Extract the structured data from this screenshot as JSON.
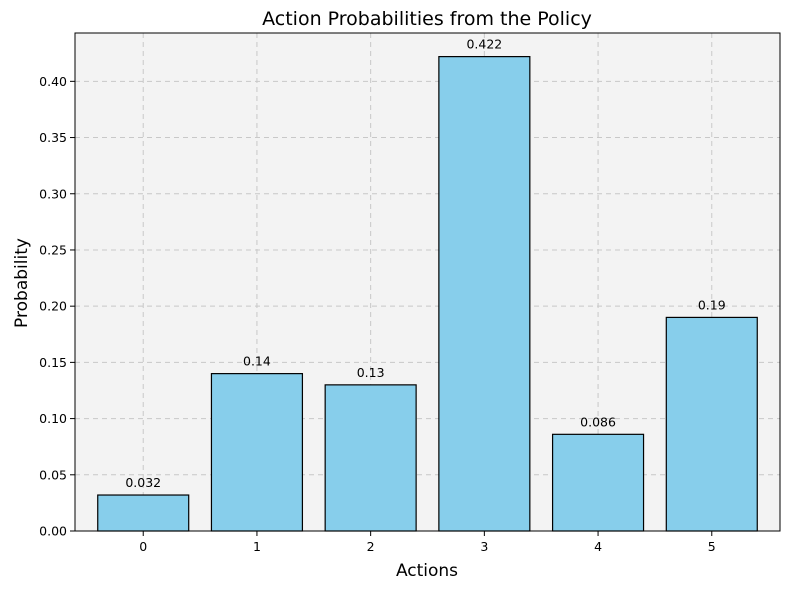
{
  "chart_data": {
    "type": "bar",
    "title": "Action Probabilities from the Policy",
    "xlabel": "Actions",
    "ylabel": "Probability",
    "categories": [
      "0",
      "1",
      "2",
      "3",
      "4",
      "5"
    ],
    "values": [
      0.032,
      0.14,
      0.13,
      0.422,
      0.086,
      0.19
    ],
    "data_labels": [
      "0.032",
      "0.14",
      "0.13",
      "0.422",
      "0.086",
      "0.19"
    ],
    "ylim": [
      0,
      0.443
    ],
    "yticks": [
      "0.00",
      "0.05",
      "0.10",
      "0.15",
      "0.20",
      "0.25",
      "0.30",
      "0.35",
      "0.40"
    ],
    "grid": true,
    "colors": {
      "bar_fill": "#87ceeb",
      "bar_edge": "#000000",
      "plot_bg": "#f3f3f3"
    }
  }
}
